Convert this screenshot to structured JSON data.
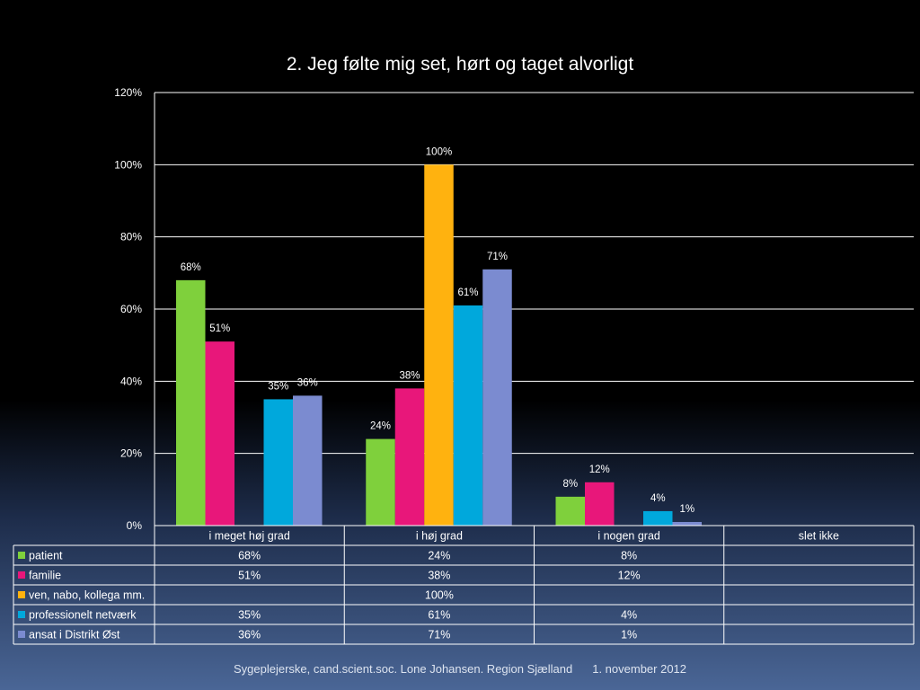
{
  "chart_data": {
    "type": "bar",
    "title": "2. Jeg følte mig set, hørt og taget alvorligt",
    "categories": [
      "i meget høj grad",
      "i høj grad",
      "i nogen grad",
      "slet ikke"
    ],
    "ylim": [
      0,
      120
    ],
    "yticks": [
      0,
      20,
      40,
      60,
      80,
      100,
      120
    ],
    "ytick_labels": [
      "0%",
      "20%",
      "40%",
      "60%",
      "80%",
      "100%",
      "120%"
    ],
    "grid": true,
    "legend": "data-table",
    "series": [
      {
        "name": "patient",
        "color": "#7fd03c",
        "values": [
          68,
          24,
          8,
          null
        ],
        "labels": [
          "68%",
          "24%",
          "8%",
          ""
        ]
      },
      {
        "name": "familie",
        "color": "#e8177a",
        "values": [
          51,
          38,
          12,
          null
        ],
        "labels": [
          "51%",
          "38%",
          "12%",
          ""
        ]
      },
      {
        "name": "ven, nabo, kollega mm.",
        "color": "#ffb20f",
        "values": [
          null,
          100,
          null,
          null
        ],
        "labels": [
          "",
          "100%",
          "",
          ""
        ]
      },
      {
        "name": "professionelt netværk",
        "color": "#00a8dc",
        "values": [
          35,
          61,
          4,
          null
        ],
        "labels": [
          "35%",
          "61%",
          "4%",
          ""
        ]
      },
      {
        "name": "ansat i Distrikt Øst",
        "color": "#7b8bd0",
        "values": [
          36,
          71,
          1,
          null
        ],
        "labels": [
          "36%",
          "71%",
          "1%",
          ""
        ]
      }
    ]
  },
  "footer": {
    "author": "Sygeplejerske, cand.scient.soc. Lone Johansen. Region Sjælland",
    "date": "1. november 2012"
  }
}
